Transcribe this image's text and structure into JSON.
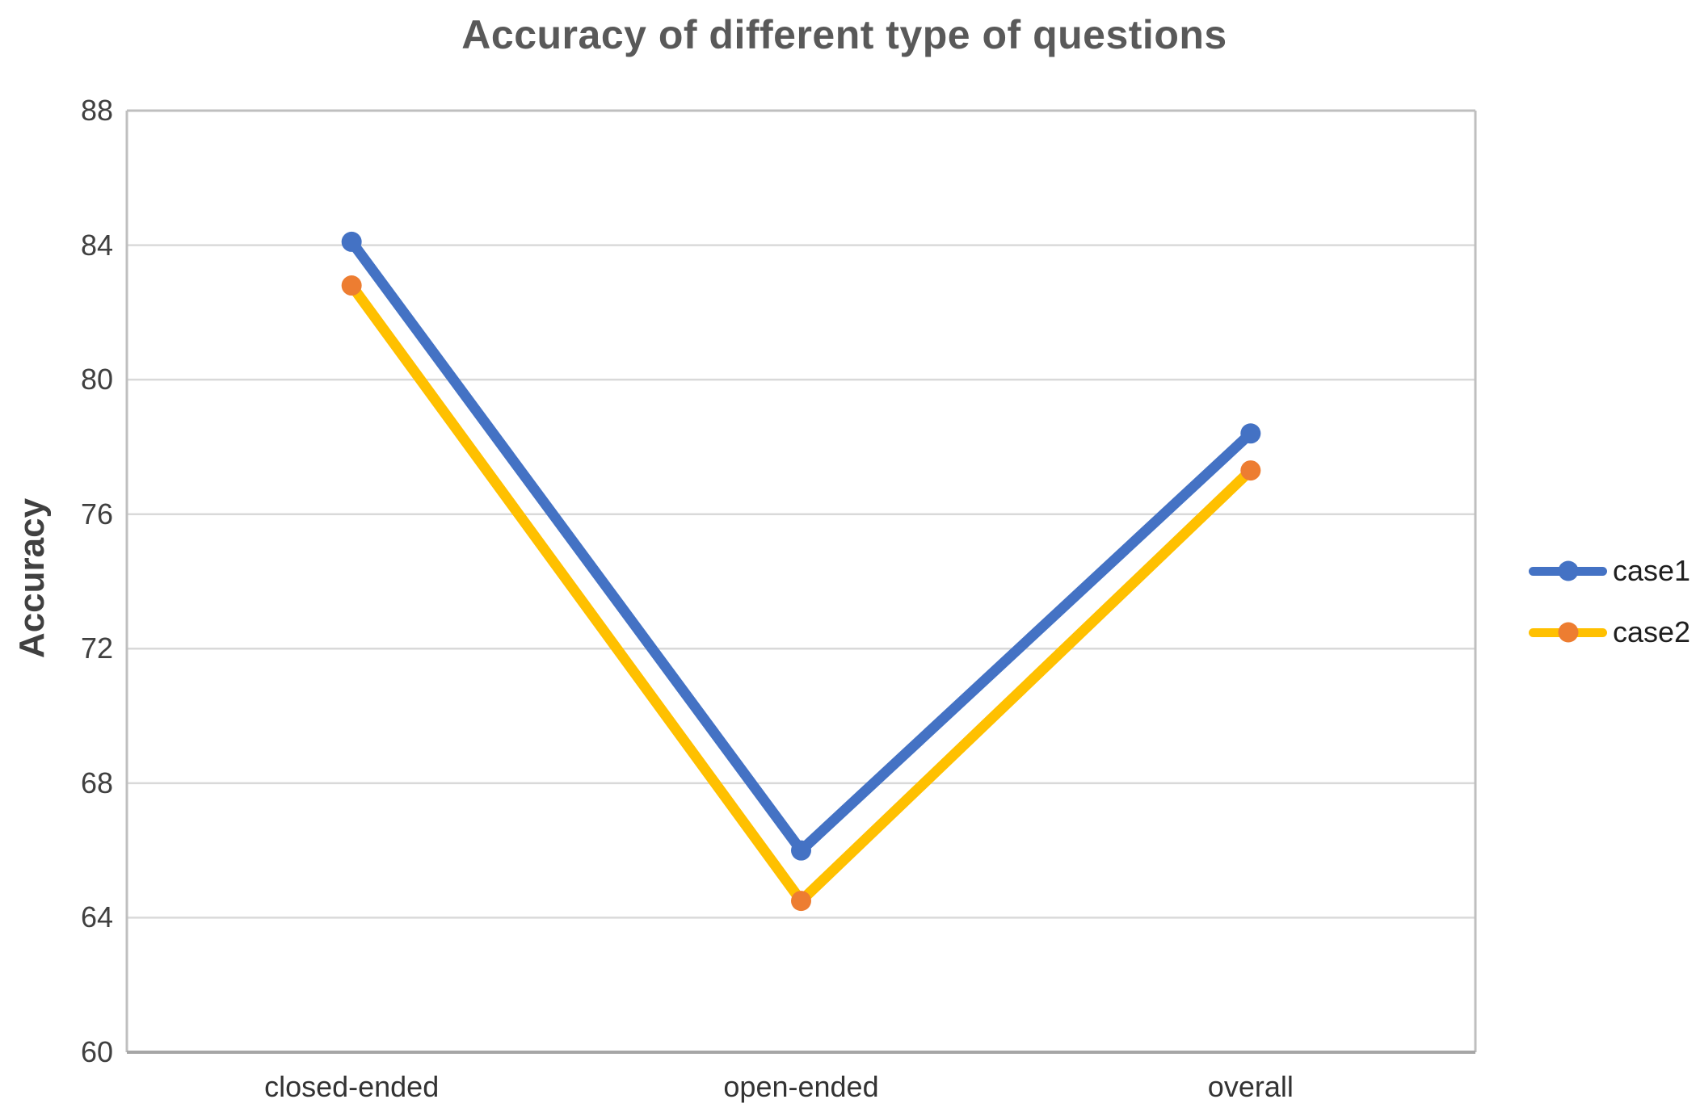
{
  "chart_data": {
    "type": "line",
    "title": "Accuracy of different type of questions",
    "ylabel": "Accuracy",
    "xlabel": "",
    "categories": [
      "closed-ended",
      "open-ended",
      "overall"
    ],
    "series": [
      {
        "name": "case1",
        "line_color": "#4472C4",
        "marker_color": "#4472C4",
        "values": [
          84.1,
          66.0,
          78.4
        ]
      },
      {
        "name": "case2",
        "line_color": "#FFC000",
        "marker_color": "#ED7D31",
        "values": [
          82.8,
          64.5,
          77.3
        ]
      }
    ],
    "ylim": [
      60,
      88
    ],
    "ytick_step": 4,
    "ytick_labels": [
      "60",
      "64",
      "68",
      "72",
      "76",
      "80",
      "84",
      "88"
    ],
    "grid": true,
    "legend_position": "right",
    "colors": {
      "gridline": "#D9D9D9",
      "plot_border": "#BFBFBF",
      "axis_line": "#A6A6A6",
      "title_text": "#595959",
      "tick_text": "#404040",
      "category_text": "#333333",
      "legend_text": "#1f1f1f",
      "background": "#FFFFFF"
    }
  }
}
